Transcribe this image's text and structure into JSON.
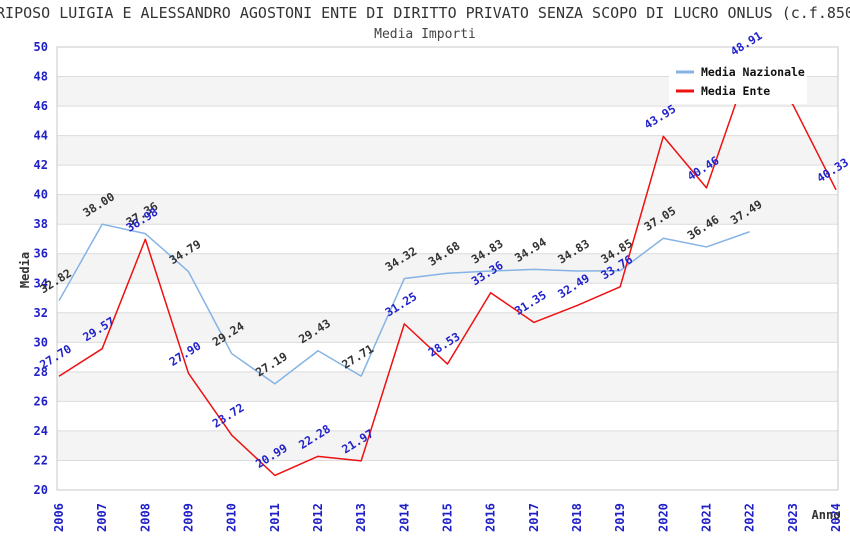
{
  "header": {
    "title": "RIPOSO LUIGIA E ALESSANDRO AGOSTONI ENTE DI DIRITTO PRIVATO SENZA SCOPO DI LUCRO ONLUS (c.f.850",
    "subtitle": "Media Importi"
  },
  "chart_data": {
    "type": "line",
    "title": "RIPOSO LUIGIA E ALESSANDRO AGOSTONI ENTE DI DIRITTO PRIVATO SENZA SCOPO DI LUCRO ONLUS (c.f.850",
    "subtitle": "Media Importi",
    "xlabel": "Anno",
    "ylabel": "Media",
    "ylim": [
      20,
      50
    ],
    "ytick_step": 2,
    "grid": "horizontal-only",
    "legend_position": "top-right",
    "x": [
      "2006",
      "2007",
      "2008",
      "2009",
      "2010",
      "2011",
      "2012",
      "2013",
      "2014",
      "2015",
      "2016",
      "2017",
      "2018",
      "2019",
      "2020",
      "2021",
      "2022",
      "2023",
      "2024"
    ],
    "series": [
      {
        "name": "Media Nazionale",
        "color": "#85b3e5",
        "label_color": "#333333",
        "values": [
          32.82,
          38.0,
          37.36,
          34.79,
          29.24,
          27.19,
          29.43,
          27.71,
          34.32,
          34.68,
          34.83,
          34.94,
          34.83,
          34.85,
          37.05,
          36.46,
          37.49,
          null,
          null
        ],
        "hide_label_for_x": []
      },
      {
        "name": "Media Ente",
        "color": "#ee1111",
        "label_color": "#2222cc",
        "values": [
          27.7,
          29.57,
          36.98,
          27.9,
          23.72,
          20.99,
          22.28,
          21.97,
          31.25,
          28.53,
          33.36,
          31.35,
          32.49,
          33.76,
          43.95,
          40.46,
          48.91,
          46.1,
          40.33
        ],
        "hide_label_for_x": [
          "2023"
        ]
      }
    ],
    "style": {
      "tick_label_color": "#2020c8",
      "axis_title_color": "#333333",
      "band_fill": "#f4f4f4",
      "grid_color": "#dcdcdc",
      "border_color": "#c8c8c8",
      "legend_bg": "#ffffff",
      "legend_text_color": "#111111"
    }
  }
}
